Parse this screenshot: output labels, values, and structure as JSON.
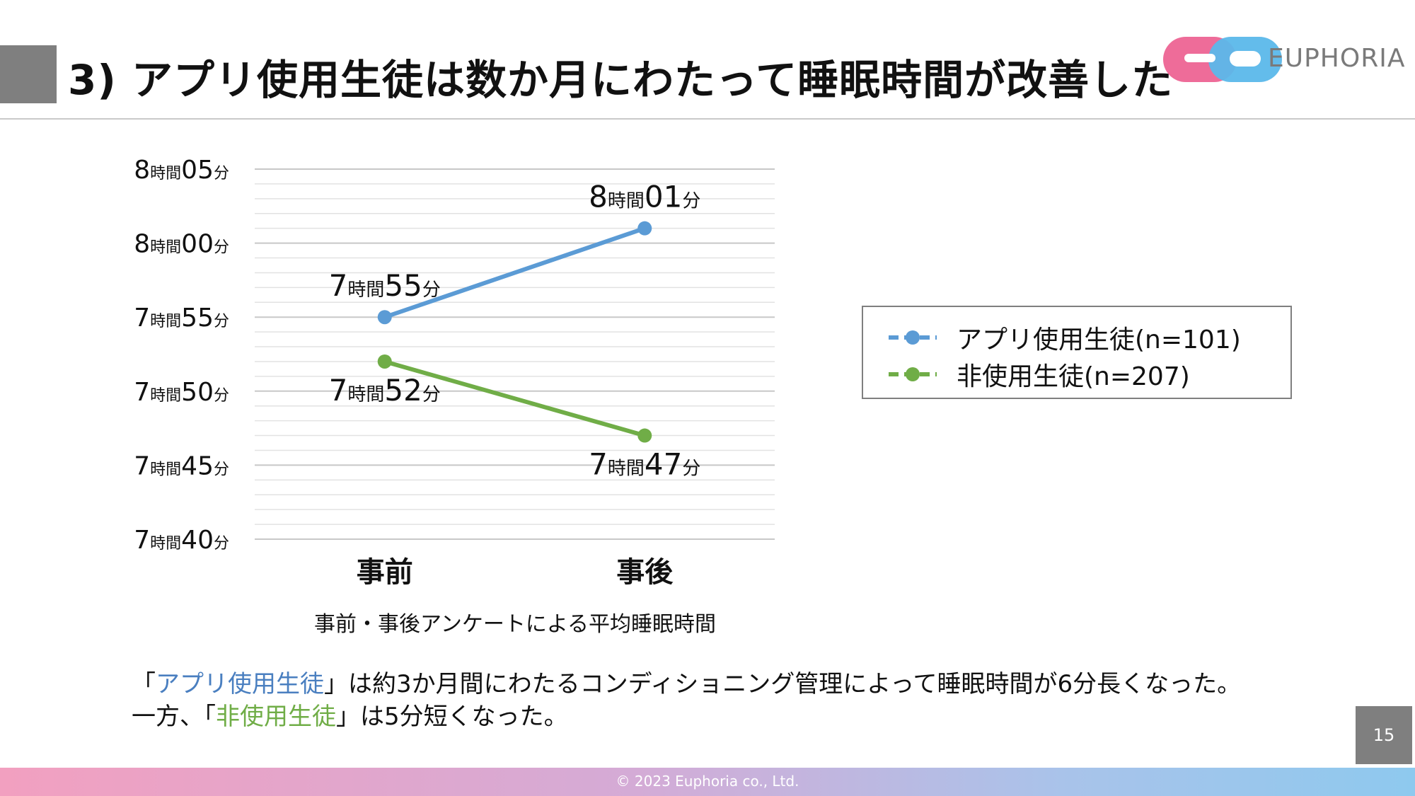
{
  "header": {
    "title": "3) アプリ使用生徒は数か月にわたって睡眠時間が改善した",
    "logo_text": "EUPHORIA"
  },
  "colors": {
    "app_series": "#5b9bd5",
    "non_series": "#70ad47",
    "accent_gray": "#7f7f7f",
    "logo_pink": "#ee6c99",
    "logo_blue": "#5bb8ea"
  },
  "chart_data": {
    "type": "line",
    "categories": [
      "事前",
      "事後"
    ],
    "series": [
      {
        "name": "アプリ使用生徒(n=101)",
        "color": "#5b9bd5",
        "values": [
          475,
          481
        ],
        "labels": [
          "7時間55分",
          "8時間01分"
        ]
      },
      {
        "name": "非使用生徒(n=207)",
        "color": "#70ad47",
        "values": [
          472,
          467
        ],
        "labels": [
          "7時間52分",
          "7時間47分"
        ]
      }
    ],
    "unit": "minutes",
    "ylim": [
      460,
      485
    ],
    "yticks": [
      {
        "value": 485,
        "label": "8時間05分"
      },
      {
        "value": 480,
        "label": "8時間00分"
      },
      {
        "value": 475,
        "label": "7時間55分"
      },
      {
        "value": 470,
        "label": "7時間50分"
      },
      {
        "value": 465,
        "label": "7時間45分"
      },
      {
        "value": 460,
        "label": "7時間40分"
      }
    ],
    "grid": true,
    "minor_grid_step": 1,
    "xlabel": "事前・事後アンケートによる平均睡眠時間",
    "legend_position": "right"
  },
  "note": {
    "line1_pre": "「",
    "line1_hl": "アプリ使用生徒",
    "line1_post": "」は約3か月間にわたるコンディショニング管理によって睡眠時間が6分長くなった。",
    "line2_pre": "一方、「",
    "line2_hl": "非使用生徒",
    "line2_post": "」は5分短くなった。"
  },
  "page_number": "15",
  "footer": {
    "copyright": "© 2023 Euphoria co., Ltd."
  }
}
